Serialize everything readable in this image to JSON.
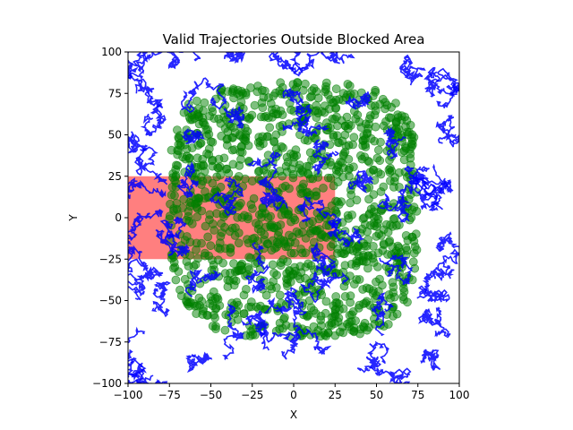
{
  "chart_data": {
    "type": "scatter",
    "title": "Valid Trajectories Outside Blocked Area",
    "xlabel": "X",
    "ylabel": "Y",
    "xlim": [
      -100,
      100
    ],
    "ylim": [
      -100,
      100
    ],
    "xticks": [
      -100,
      -75,
      -50,
      -25,
      0,
      25,
      50,
      75,
      100
    ],
    "yticks": [
      -100,
      -75,
      -50,
      -25,
      0,
      25,
      50,
      75,
      100
    ],
    "xtick_labels": [
      "−100",
      "−75",
      "−50",
      "−25",
      "0",
      "25",
      "50",
      "75",
      "100"
    ],
    "ytick_labels": [
      "−100",
      "−75",
      "−50",
      "−25",
      "0",
      "25",
      "50",
      "75",
      "100"
    ],
    "grid": false,
    "legend": "none",
    "blocked_area": {
      "x": [
        -100,
        25
      ],
      "y": [
        -25,
        25
      ],
      "color": "#ff0000",
      "alpha": 0.5
    },
    "trajectory_color": "#0000ff",
    "point_color": "#008000",
    "point_alpha": 0.5,
    "point_cloud_extent": {
      "x": [
        -75,
        75
      ],
      "y": [
        -72,
        82
      ]
    },
    "trajectory_seed_points": [
      [
        -90,
        95
      ],
      [
        -60,
        95
      ],
      [
        -35,
        98
      ],
      [
        -5,
        92
      ],
      [
        35,
        97
      ],
      [
        65,
        92
      ],
      [
        85,
        90
      ],
      [
        95,
        80
      ],
      [
        -95,
        75
      ],
      [
        -85,
        60
      ],
      [
        -95,
        45
      ],
      [
        -90,
        30
      ],
      [
        -80,
        15
      ],
      [
        -95,
        -5
      ],
      [
        -88,
        -30
      ],
      [
        -95,
        -45
      ],
      [
        -85,
        -55
      ],
      [
        -90,
        -70
      ],
      [
        -95,
        -85
      ],
      [
        -85,
        -95
      ],
      [
        -60,
        -90
      ],
      [
        -40,
        -85
      ],
      [
        -15,
        -80
      ],
      [
        15,
        -75
      ],
      [
        45,
        -85
      ],
      [
        70,
        -95
      ],
      [
        85,
        -85
      ],
      [
        92,
        -70
      ],
      [
        90,
        -50
      ],
      [
        85,
        -35
      ],
      [
        95,
        -15
      ],
      [
        90,
        5
      ],
      [
        95,
        15
      ],
      [
        85,
        30
      ],
      [
        90,
        45
      ],
      [
        -50,
        70
      ],
      [
        -30,
        60
      ],
      [
        0,
        75
      ],
      [
        20,
        55
      ],
      [
        45,
        70
      ],
      [
        60,
        50
      ],
      [
        -60,
        30
      ],
      [
        -40,
        20
      ],
      [
        -10,
        10
      ],
      [
        10,
        0
      ],
      [
        35,
        20
      ],
      [
        55,
        10
      ],
      [
        70,
        30
      ],
      [
        -65,
        -20
      ],
      [
        -45,
        -35
      ],
      [
        -20,
        -40
      ],
      [
        0,
        -55
      ],
      [
        30,
        -40
      ],
      [
        55,
        -55
      ],
      [
        60,
        -30
      ],
      [
        -30,
        -65
      ],
      [
        -55,
        50
      ],
      [
        25,
        40
      ],
      [
        -20,
        35
      ],
      [
        40,
        -10
      ],
      [
        -70,
        0
      ],
      [
        15,
        -20
      ]
    ]
  }
}
